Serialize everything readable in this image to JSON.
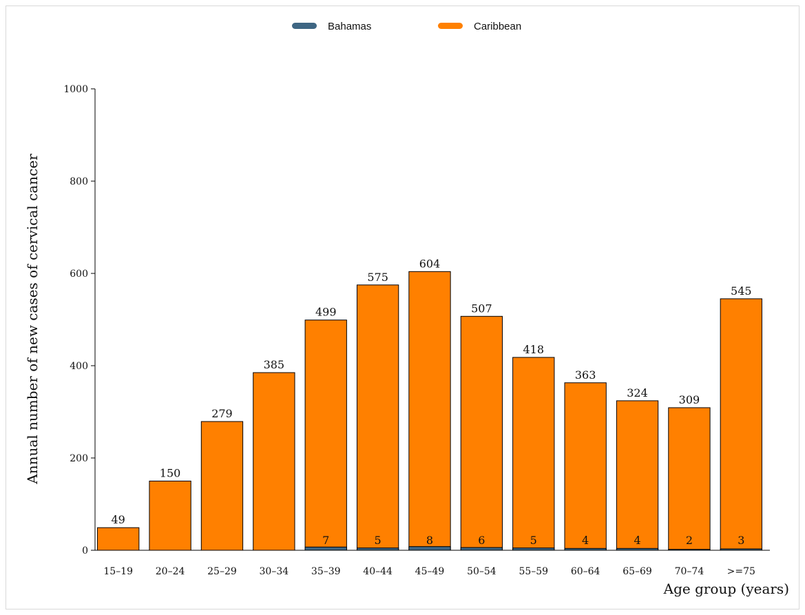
{
  "chart_data": {
    "type": "bar",
    "layout": "overlaid",
    "categories": [
      "15–19",
      "20–24",
      "25–29",
      "30–34",
      "35–39",
      "40–44",
      "45–49",
      "50–54",
      "55–59",
      "60–64",
      "65–69",
      "70–74",
      ">=75"
    ],
    "series": [
      {
        "name": "Bahamas",
        "color": "#3e6683",
        "values": [
          0,
          0,
          0,
          0,
          7,
          5,
          8,
          6,
          5,
          4,
          4,
          2,
          3
        ],
        "labels": [
          "",
          "",
          "",
          "",
          "7",
          "5",
          "8",
          "6",
          "5",
          "4",
          "4",
          "2",
          "3"
        ]
      },
      {
        "name": "Caribbean",
        "color": "#ff8000",
        "values": [
          49,
          150,
          279,
          385,
          499,
          575,
          604,
          507,
          418,
          363,
          324,
          309,
          545
        ],
        "labels": [
          "49",
          "150",
          "279",
          "385",
          "499",
          "575",
          "604",
          "507",
          "418",
          "363",
          "324",
          "309",
          "545"
        ]
      }
    ],
    "xlabel": "Age group (years)",
    "ylabel": "Annual number of new cases of cervical cancer",
    "ylim": [
      0,
      1000
    ],
    "yticks": [
      0,
      200,
      400,
      600,
      800,
      1000
    ],
    "legend": "top-center",
    "grid": false
  }
}
